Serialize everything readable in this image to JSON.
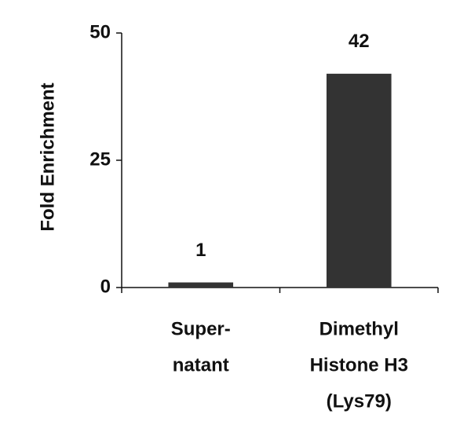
{
  "chart_data": {
    "type": "bar",
    "y_label": "Fold Enrichment",
    "categories": [
      [
        "Super-",
        "natant"
      ],
      [
        "Dimethyl",
        "Histone H3",
        "(Lys79)"
      ]
    ],
    "values": [
      1,
      42
    ],
    "color": "#333333",
    "ylim": [
      0,
      50
    ],
    "yticks": [
      0,
      25,
      50
    ]
  }
}
